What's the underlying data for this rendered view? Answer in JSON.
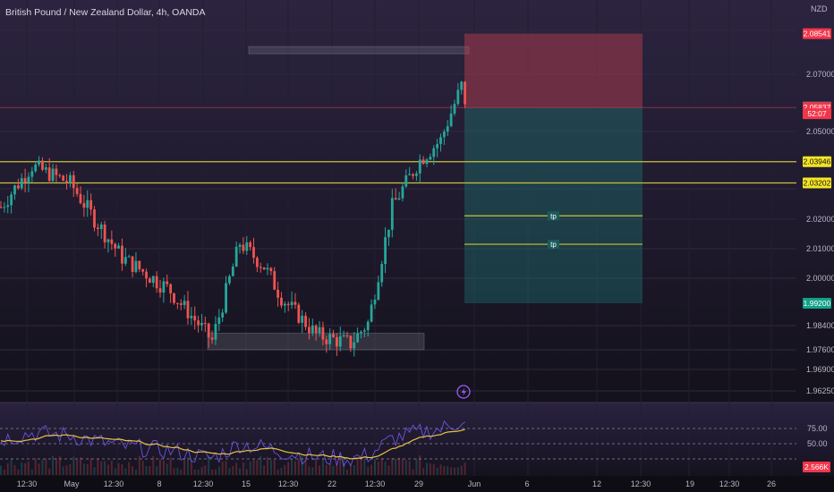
{
  "header": {
    "title": "British Pound / New Zealand Dollar, 4h, OANDA"
  },
  "price_axis": {
    "currency": "NZD",
    "ticks": [
      {
        "label": "2.07000",
        "value": 2.07
      },
      {
        "label": "2.05000",
        "value": 2.05
      },
      {
        "label": "2.02000",
        "value": 2.02
      },
      {
        "label": "2.01000",
        "value": 2.01
      },
      {
        "label": "2.00000",
        "value": 2.0
      },
      {
        "label": "1.98400",
        "value": 1.984
      },
      {
        "label": "1.97600",
        "value": 1.976
      },
      {
        "label": "1.96900",
        "value": 1.969
      },
      {
        "label": "1.96250",
        "value": 1.9625
      }
    ],
    "badges": [
      {
        "label": "2.08541",
        "value": 2.08541,
        "bg": "#f2364a",
        "fg": "#ffffff"
      },
      {
        "label": "2.05856",
        "value": 2.05856,
        "bg": "#747482",
        "fg": "#ffffff"
      },
      {
        "label": "2.05837",
        "value": 2.05837,
        "bg": "#f2364a",
        "fg": "#ffffff"
      },
      {
        "label": "52:07",
        "value": 2.0562,
        "bg": "#f2364a",
        "fg": "#ffffff"
      },
      {
        "label": "2.03946",
        "value": 2.03946,
        "bg": "#f4e526",
        "fg": "#111111"
      },
      {
        "label": "2.03202",
        "value": 2.03202,
        "bg": "#f4e526",
        "fg": "#111111"
      },
      {
        "label": "1.99200",
        "value": 1.992,
        "bg": "#13a18a",
        "fg": "#ffffff"
      }
    ]
  },
  "horizontal_lines": [
    {
      "value": 2.03946,
      "color": "#c8c23a"
    },
    {
      "value": 2.03202,
      "color": "#c8c23a"
    }
  ],
  "position_tool": {
    "entry": 2.05837,
    "stop": 2.08541,
    "target": 1.992,
    "tp_lines": [
      {
        "label": "tp",
        "value": 2.0211
      },
      {
        "label": "tp",
        "value": 2.0115
      }
    ]
  },
  "zones": [
    {
      "name": "upper-gray-zone",
      "top": 2.0805,
      "bottom": 2.0783
    },
    {
      "name": "demand-zone",
      "top": 1.9815,
      "bottom": 1.976
    }
  ],
  "time_axis": {
    "labels": [
      "12:30",
      "May",
      "12:30",
      "8",
      "12:30",
      "15",
      "12:30",
      "22",
      "12:30",
      "29",
      "Jun",
      "6",
      "12",
      "12:30",
      "19",
      "12:30",
      "26"
    ]
  },
  "indicator": {
    "levels": [
      {
        "label": "75.00",
        "value": 75
      },
      {
        "label": "50.00",
        "value": 50
      }
    ],
    "value_badge": "2.566K",
    "badge_color": "#f2364a",
    "line_colors": {
      "fast": "#7b5cff",
      "signal": "#e8c442"
    }
  },
  "event_marker": "lightning-icon",
  "colors": {
    "bull": "#26a69a",
    "bear": "#ef5350",
    "tp_line": "#c8c23a"
  },
  "chart_data": {
    "type": "candlestick",
    "x_labels": [
      "12:30",
      "May",
      "12:30",
      "8",
      "12:30",
      "15",
      "12:30",
      "22",
      "12:30",
      "29",
      "Jun"
    ],
    "ylim": [
      1.96,
      2.088
    ],
    "checkpoints": [
      {
        "x": "May",
        "y": 2.032
      },
      {
        "x": "8",
        "y": 1.996
      },
      {
        "x": "12:30",
        "y": 1.979
      },
      {
        "x": "15",
        "y": 2.012
      },
      {
        "x": "12:30",
        "y": 2.004
      },
      {
        "x": "22",
        "y": 1.981
      },
      {
        "x": "12:30",
        "y": 1.978
      },
      {
        "x": "12:30",
        "y": 2.024
      },
      {
        "x": "29",
        "y": 2.04
      },
      {
        "x": "Jun",
        "y": 2.058
      }
    ]
  }
}
